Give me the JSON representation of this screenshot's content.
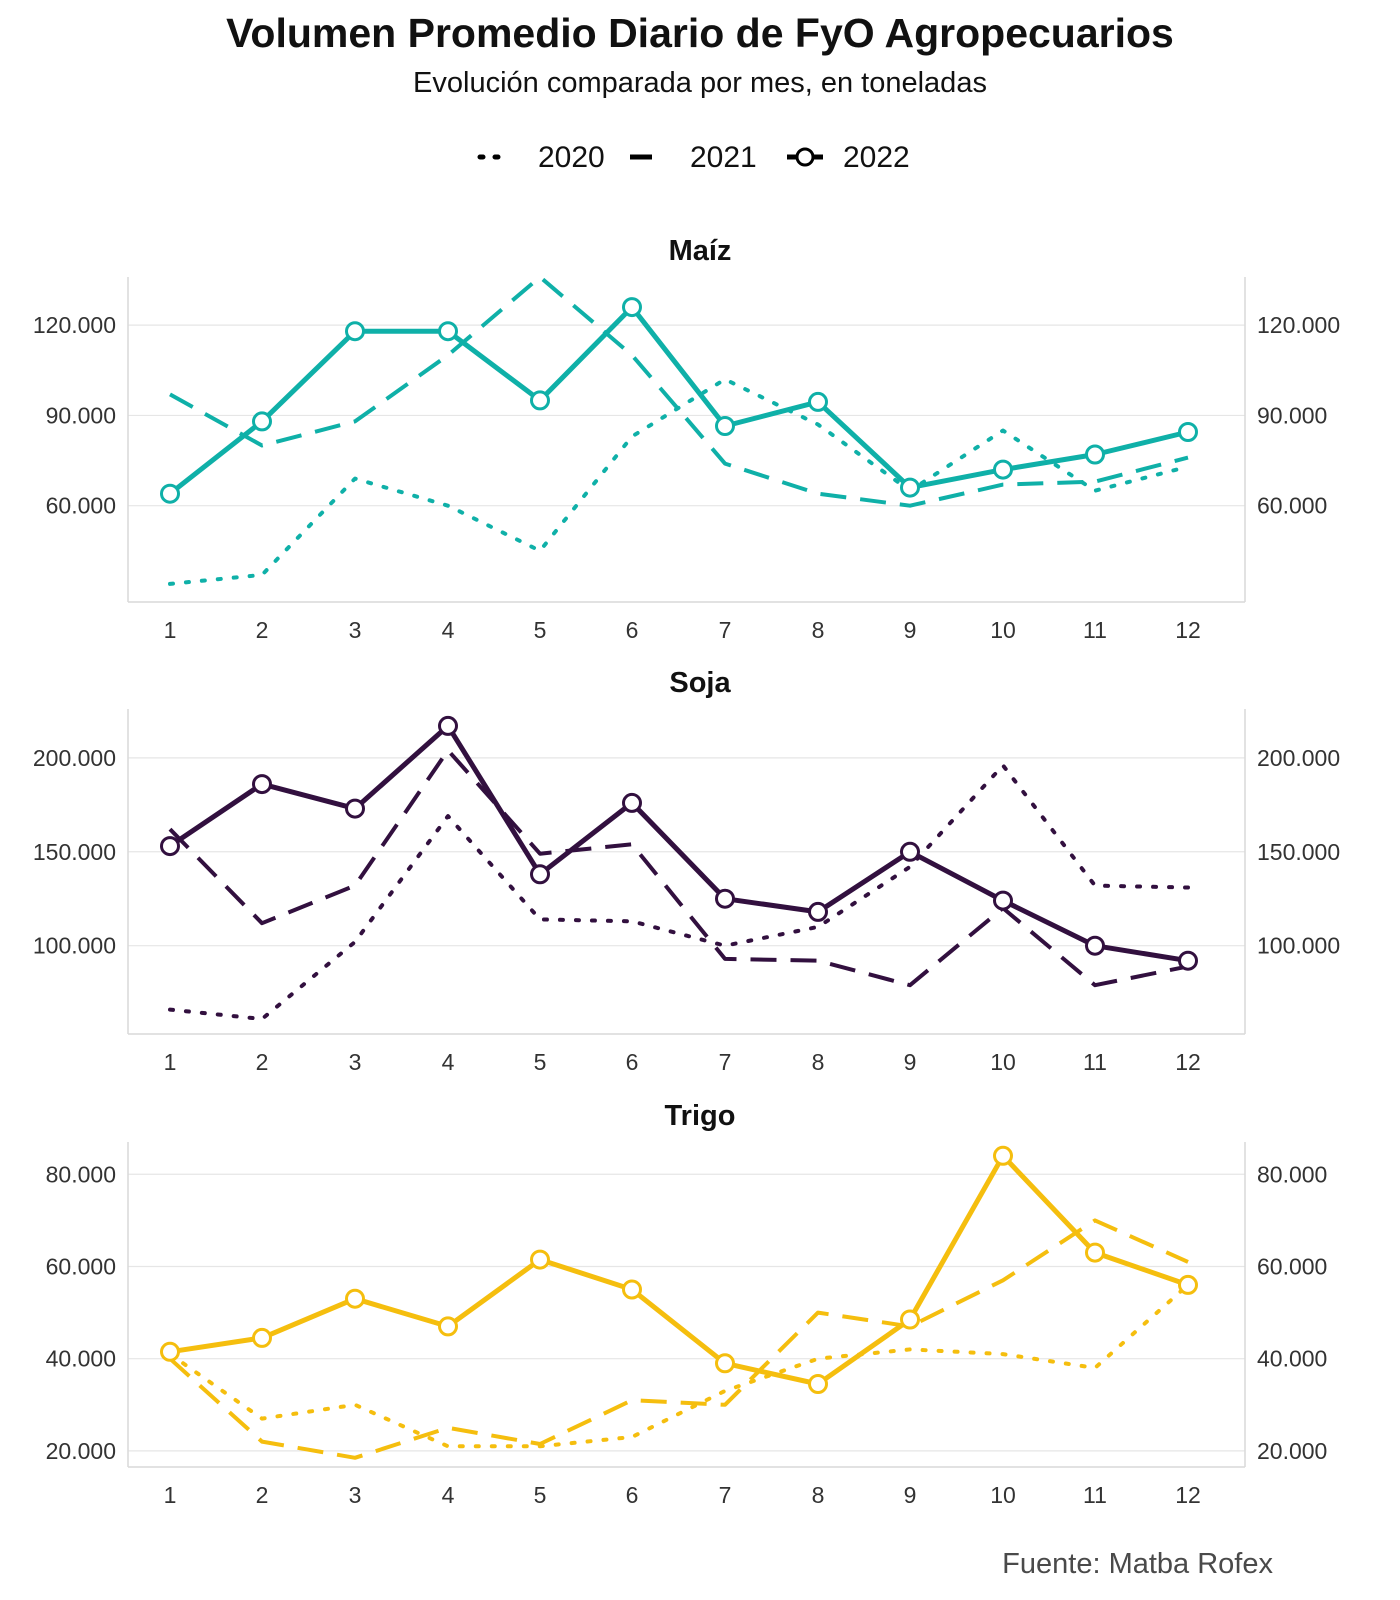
{
  "header": {
    "title": "Volumen Promedio Diario de FyO Agropecuarios",
    "subtitle": "Evolución comparada por mes, en toneladas"
  },
  "legend": {
    "items": [
      {
        "label": "2020",
        "style": "dotted"
      },
      {
        "label": "2021",
        "style": "dashed"
      },
      {
        "label": "2022",
        "style": "solid-points"
      }
    ]
  },
  "source": "Fuente: Matba Rofex",
  "chart_data": [
    {
      "type": "line",
      "title": "Maíz",
      "color": "#0FB0A8",
      "x": [
        1,
        2,
        3,
        4,
        5,
        6,
        7,
        8,
        9,
        10,
        11,
        12
      ],
      "x_ticks": [
        "1",
        "2",
        "3",
        "4",
        "5",
        "6",
        "7",
        "8",
        "9",
        "10",
        "11",
        "12"
      ],
      "ylim": [
        28000,
        136000
      ],
      "y_ticks": [
        60000,
        90000,
        120000
      ],
      "y_tick_labels": [
        "60.000",
        "90.000",
        "120.000"
      ],
      "grid": true,
      "series": [
        {
          "name": "2020",
          "style": "dotted",
          "values": [
            34000,
            37000,
            69000,
            60000,
            45000,
            83000,
            102000,
            87000,
            65000,
            85000,
            65000,
            73000
          ]
        },
        {
          "name": "2021",
          "style": "dashed",
          "values": [
            97000,
            80000,
            88000,
            110000,
            136000,
            110000,
            74000,
            64000,
            60000,
            67000,
            68000,
            76000
          ]
        },
        {
          "name": "2022",
          "style": "solid-points",
          "values": [
            64000,
            88000,
            118000,
            118000,
            95000,
            126000,
            86500,
            94500,
            66000,
            72000,
            77000,
            84500
          ]
        }
      ]
    },
    {
      "type": "line",
      "title": "Soja",
      "color": "#32103F",
      "x": [
        1,
        2,
        3,
        4,
        5,
        6,
        7,
        8,
        9,
        10,
        11,
        12
      ],
      "x_ticks": [
        "1",
        "2",
        "3",
        "4",
        "5",
        "6",
        "7",
        "8",
        "9",
        "10",
        "11",
        "12"
      ],
      "ylim": [
        53000,
        226000
      ],
      "y_ticks": [
        100000,
        150000,
        200000
      ],
      "y_tick_labels": [
        "100.000",
        "150.000",
        "200.000"
      ],
      "grid": true,
      "series": [
        {
          "name": "2020",
          "style": "dotted",
          "values": [
            66000,
            61000,
            102000,
            169000,
            114000,
            113000,
            100000,
            110000,
            142000,
            196000,
            132000,
            131000
          ]
        },
        {
          "name": "2021",
          "style": "dashed",
          "values": [
            162000,
            112000,
            132000,
            204000,
            149000,
            154000,
            93000,
            92000,
            79000,
            120000,
            79000,
            89000
          ]
        },
        {
          "name": "2022",
          "style": "solid-points",
          "values": [
            153000,
            186000,
            173000,
            217000,
            138000,
            176000,
            125000,
            118000,
            150000,
            124000,
            100000,
            92000
          ]
        }
      ]
    },
    {
      "type": "line",
      "title": "Trigo",
      "color": "#F5BE0E",
      "x": [
        1,
        2,
        3,
        4,
        5,
        6,
        7,
        8,
        9,
        10,
        11,
        12
      ],
      "x_ticks": [
        "1",
        "2",
        "3",
        "4",
        "5",
        "6",
        "7",
        "8",
        "9",
        "10",
        "11",
        "12"
      ],
      "ylim": [
        16500,
        87000
      ],
      "y_ticks": [
        20000,
        40000,
        60000,
        80000
      ],
      "y_tick_labels": [
        "20.000",
        "40.000",
        "60.000",
        "80.000"
      ],
      "grid": true,
      "series": [
        {
          "name": "2020",
          "style": "dotted",
          "values": [
            41000,
            27000,
            30000,
            21000,
            21000,
            23000,
            33000,
            40000,
            42000,
            41000,
            38000,
            56000
          ]
        },
        {
          "name": "2021",
          "style": "dashed",
          "values": [
            40000,
            22000,
            18500,
            25000,
            21500,
            31000,
            30000,
            50000,
            47000,
            57000,
            70000,
            61000
          ]
        },
        {
          "name": "2022",
          "style": "solid-points",
          "values": [
            41500,
            44500,
            53000,
            47000,
            61500,
            55000,
            39000,
            34500,
            48500,
            84000,
            63000,
            56000
          ]
        }
      ]
    }
  ]
}
